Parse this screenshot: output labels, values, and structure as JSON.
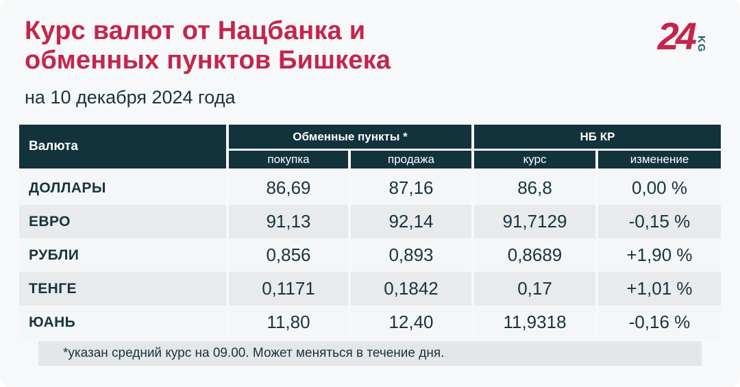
{
  "page": {
    "title_line1": "Курс валют от Нацбанка и",
    "title_line2": "обменных пунктов Бишкека",
    "subtitle": "на 10 декабря 2024 года",
    "footnote": "*указан средний курс на 09.00. Может меняться в течение дня."
  },
  "logo": {
    "number": "24",
    "suffix": "KG"
  },
  "table": {
    "currency_header": "Валюта",
    "group_exchange": "Обменные пункты *",
    "group_nbkr": "НБ КР",
    "sub_buy": "покупка",
    "sub_sell": "продажа",
    "sub_rate": "курс",
    "sub_change": "изменение",
    "rows": [
      {
        "currency": "ДОЛЛАРЫ",
        "buy": "86,69",
        "sell": "87,16",
        "rate": "86,8",
        "change": "0,00 %"
      },
      {
        "currency": "ЕВРО",
        "buy": "91,13",
        "sell": "92,14",
        "rate": "91,7129",
        "change": "-0,15 %"
      },
      {
        "currency": "РУБЛИ",
        "buy": "0,856",
        "sell": "0,893",
        "rate": "0,8689",
        "change": "+1,90 %"
      },
      {
        "currency": "ТЕНГЕ",
        "buy": "0,1171",
        "sell": "0,1842",
        "rate": "0,17",
        "change": "+1,01 %"
      },
      {
        "currency": "ЮАНЬ",
        "buy": "11,80",
        "sell": "12,40",
        "rate": "11,9318",
        "change": "-0,16 %"
      }
    ]
  },
  "colors": {
    "accent_red": "#c5254a",
    "header_dark": "#12323c",
    "text_dark": "#17343e",
    "row_light": "#f5f6f8",
    "row_gray": "#e8eaec",
    "footnote_bg": "#e4e6e8",
    "page_bg": "#f7f8fa",
    "logo_kg": "#23586e"
  },
  "chart_data": {
    "type": "table",
    "title": "Курс валют от Нацбанка и обменных пунктов Бишкека",
    "subtitle": "на 10 декабря 2024 года",
    "column_groups": [
      "Валюта",
      "Обменные пункты *",
      "Обменные пункты *",
      "НБ КР",
      "НБ КР"
    ],
    "columns": [
      "Валюта",
      "покупка",
      "продажа",
      "курс",
      "изменение"
    ],
    "rows": [
      [
        "ДОЛЛАРЫ",
        86.69,
        87.16,
        86.8,
        "0,00 %"
      ],
      [
        "ЕВРО",
        91.13,
        92.14,
        91.7129,
        "-0,15 %"
      ],
      [
        "РУБЛИ",
        0.856,
        0.893,
        0.8689,
        "+1,90 %"
      ],
      [
        "ТЕНГЕ",
        0.1171,
        0.1842,
        0.17,
        "+1,01 %"
      ],
      [
        "ЮАНЬ",
        11.8,
        12.4,
        11.9318,
        "-0,16 %"
      ]
    ],
    "footnote": "*указан средний курс на 09.00. Может меняться в течение дня."
  }
}
